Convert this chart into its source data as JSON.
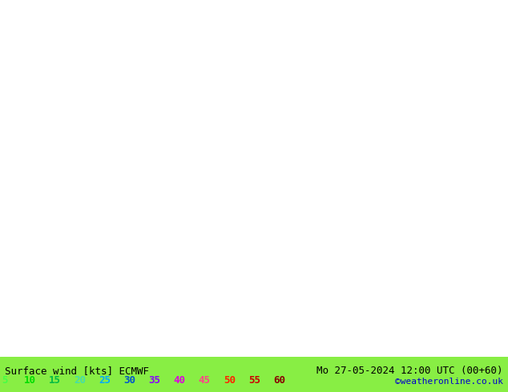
{
  "title_left": "Surface wind [kts] ECMWF",
  "title_right": "Mo 27-05-2024 12:00 UTC (00+60)",
  "credit": "©weatheronline.co.uk",
  "legend_values": [
    5,
    10,
    15,
    20,
    25,
    30,
    35,
    40,
    45,
    50,
    55,
    60
  ],
  "legend_colors": [
    "#00ff00",
    "#00dd00",
    "#44cc00",
    "#88bb00",
    "#ccaa00",
    "#ffcc00",
    "#ff8800",
    "#ff4400",
    "#ff00cc",
    "#cc00ff",
    "#8800ff",
    "#4400ff"
  ],
  "speed_levels": [
    0,
    5,
    10,
    15,
    20,
    25,
    30,
    35,
    40,
    45,
    50,
    55,
    60
  ],
  "colormap_colors": [
    "#ffff00",
    "#aaff00",
    "#55ee00",
    "#00dd00",
    "#00cc55",
    "#00bbaa",
    "#00aaee",
    "#0055ff",
    "#aa00ff",
    "#ff00aa",
    "#ff0000",
    "#880000"
  ],
  "background": "#ffffff",
  "bottom_bar_color": "#00cc00",
  "figsize": [
    6.34,
    4.9
  ],
  "dpi": 100,
  "lon_min": -5,
  "lon_max": 35,
  "lat_min": 53,
  "lat_max": 72
}
